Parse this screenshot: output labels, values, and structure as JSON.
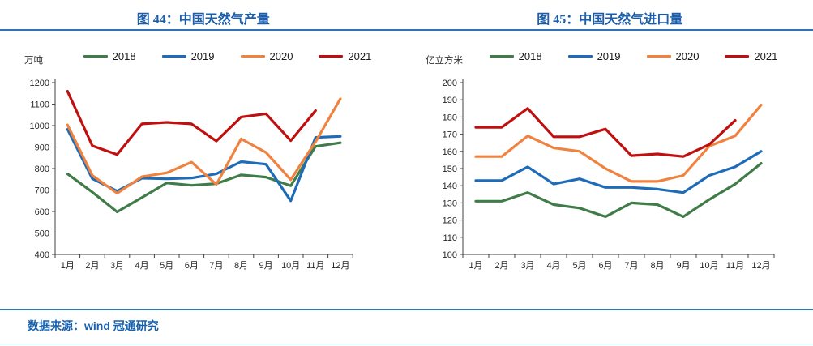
{
  "footer": {
    "source_text": "数据来源：wind  冠通研究"
  },
  "colors": {
    "title_blue": "#1B5EAC",
    "rule_blue": "#2E74B5",
    "axis": "#404040",
    "series_2018": "#3F7C48",
    "series_2019": "#1E6CB8",
    "series_2020": "#F08240",
    "series_2021": "#C00F0F"
  },
  "chart_data": [
    {
      "type": "line",
      "title": "图 44：中国天然气产量",
      "unit": "万吨",
      "legend_position": "top",
      "grid": false,
      "categories": [
        "1月",
        "2月",
        "3月",
        "4月",
        "5月",
        "6月",
        "7月",
        "8月",
        "9月",
        "10月",
        "11月",
        "12月"
      ],
      "y_min": 400,
      "y_max": 1200,
      "y_step": 100,
      "y_ticks": [
        400,
        500,
        600,
        700,
        800,
        900,
        1000,
        1100,
        1200
      ],
      "series": [
        {
          "name": "2018",
          "color": "#3F7C48",
          "values": [
            775,
            690,
            598,
            665,
            733,
            722,
            730,
            770,
            760,
            720,
            903,
            920
          ]
        },
        {
          "name": "2019",
          "color": "#1E6CB8",
          "values": [
            983,
            753,
            695,
            755,
            752,
            756,
            775,
            832,
            820,
            650,
            945,
            950
          ]
        },
        {
          "name": "2020",
          "color": "#F08240",
          "values": [
            1003,
            768,
            685,
            762,
            780,
            830,
            726,
            938,
            875,
            748,
            925,
            1125
          ]
        },
        {
          "name": "2021",
          "color": "#C00F0F",
          "values": [
            1160,
            906,
            865,
            1008,
            1015,
            1008,
            928,
            1040,
            1055,
            930,
            1070,
            null
          ]
        }
      ]
    },
    {
      "type": "line",
      "title": "图 45：中国天然气进口量",
      "unit": "亿立方米",
      "legend_position": "top",
      "grid": false,
      "categories": [
        "1月",
        "2月",
        "3月",
        "4月",
        "5月",
        "6月",
        "7月",
        "8月",
        "9月",
        "10月",
        "11月",
        "12月"
      ],
      "y_min": 100,
      "y_max": 200,
      "y_step": 10,
      "y_ticks": [
        100,
        110,
        120,
        130,
        140,
        150,
        160,
        170,
        180,
        190,
        200
      ],
      "series": [
        {
          "name": "2018",
          "color": "#3F7C48",
          "values": [
            131,
            131,
            136,
            129,
            127,
            122,
            130,
            129,
            122,
            132,
            141,
            153
          ]
        },
        {
          "name": "2019",
          "color": "#1E6CB8",
          "values": [
            143,
            143,
            151,
            141,
            144,
            139,
            139,
            138,
            136,
            146,
            151,
            160
          ]
        },
        {
          "name": "2020",
          "color": "#F08240",
          "values": [
            157,
            157,
            169,
            162,
            160,
            150,
            142.5,
            142.5,
            146,
            163,
            169,
            187
          ]
        },
        {
          "name": "2021",
          "color": "#C00F0F",
          "values": [
            174,
            174,
            185,
            168.5,
            168.5,
            173,
            157.5,
            158.5,
            157,
            164,
            178,
            null
          ]
        }
      ]
    }
  ]
}
